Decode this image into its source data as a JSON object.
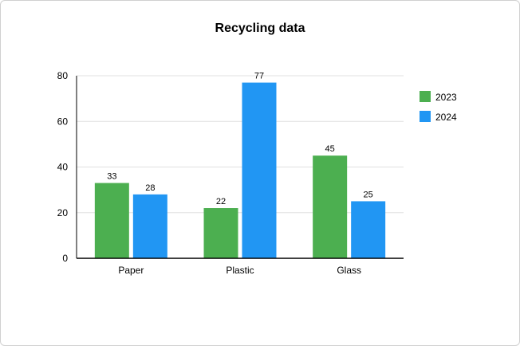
{
  "chart_data": {
    "type": "bar",
    "title": "Recycling data",
    "xlabel": "",
    "ylabel": "",
    "categories": [
      "Paper",
      "Plastic",
      "Glass"
    ],
    "series": [
      {
        "name": "2023",
        "values": [
          33,
          22,
          45
        ],
        "color": "#4caf50"
      },
      {
        "name": "2024",
        "values": [
          28,
          77,
          25
        ],
        "color": "#2196f3"
      }
    ],
    "ylim": [
      0,
      80
    ],
    "yticks": [
      0,
      20,
      40,
      60,
      80
    ],
    "grid": true,
    "legend": "right",
    "data_labels": true
  }
}
